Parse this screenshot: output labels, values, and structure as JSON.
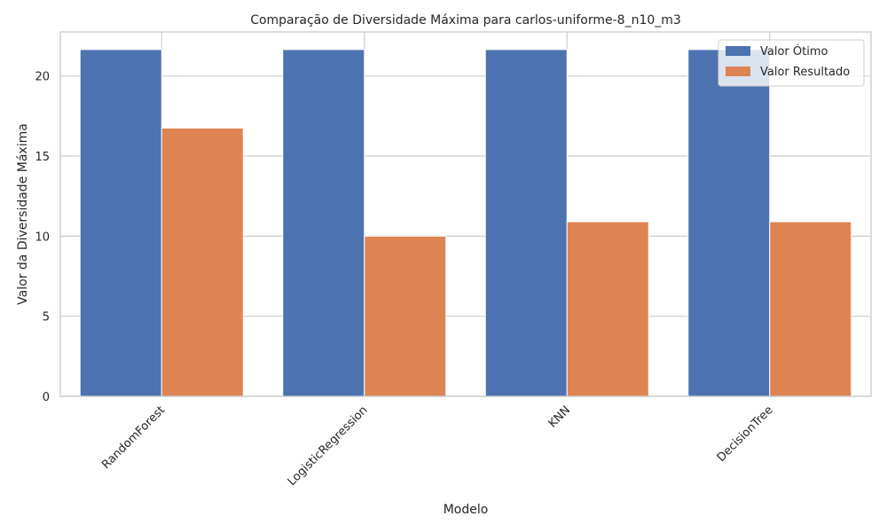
{
  "chart_data": {
    "type": "bar",
    "title": "Comparação de Diversidade Máxima para carlos-uniforme-8_n10_m3",
    "xlabel": "Modelo",
    "ylabel": "Valor da Diversidade Máxima",
    "categories": [
      "RandomForest",
      "LogisticRegression",
      "KNN",
      "DecisionTree"
    ],
    "series": [
      {
        "name": "Valor Ótimo",
        "color": "#4c72b0",
        "values": [
          21.65,
          21.65,
          21.65,
          21.65
        ]
      },
      {
        "name": "Valor Resultado",
        "color": "#dd8452",
        "values": [
          16.75,
          10.0,
          10.9,
          10.9
        ]
      }
    ],
    "ylim": [
      0,
      22.75
    ],
    "yticks": [
      0,
      5,
      10,
      15,
      20
    ],
    "grid": true,
    "legend_position": "top-right"
  }
}
